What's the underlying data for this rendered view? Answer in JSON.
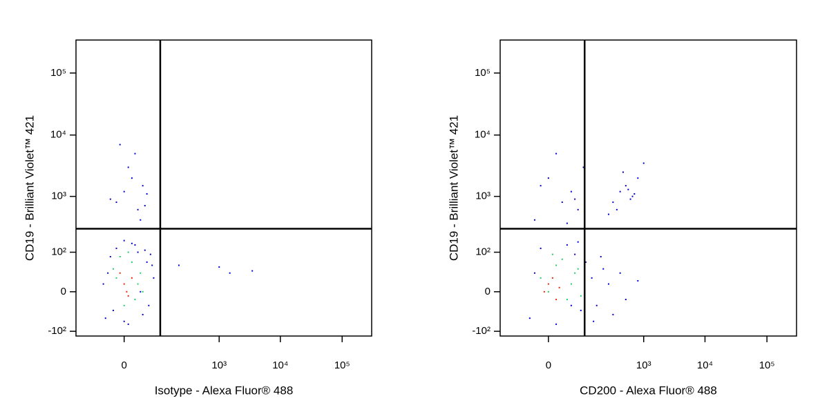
{
  "chart_data": [
    {
      "type": "scatter",
      "xlabel": "Isotype - Alexa Fluor® 488",
      "ylabel": "CD19 - Brilliant Violet™ 421",
      "xlim": [
        -150,
        300000
      ],
      "ylim": [
        -125,
        340000
      ],
      "xticks": [
        0,
        {
          "value": 1000,
          "label": "10³"
        },
        {
          "value": 10000,
          "label": "10⁴"
        },
        {
          "value": 100000,
          "label": "10⁵"
        }
      ],
      "yticks": [
        {
          "value": -100,
          "label": "-10²"
        },
        0,
        {
          "value": 100,
          "label": "10²"
        },
        {
          "value": 1000,
          "label": "10³"
        },
        {
          "value": 10000,
          "label": "10⁴"
        },
        {
          "value": 100000,
          "label": "10⁵"
        }
      ],
      "gates": {
        "x": 85,
        "y": 280
      },
      "series": [
        {
          "color": "#0000cc",
          "x": [
            -30,
            -20,
            -10,
            0,
            10,
            20,
            30,
            40,
            50,
            60,
            -25,
            -15,
            5,
            15,
            25,
            35,
            45,
            -35,
            0,
            55,
            -10,
            0,
            10,
            20,
            30,
            -20,
            5,
            15,
            25,
            40,
            -5,
            35,
            1000,
            1500,
            3500,
            200
          ],
          "values": [
            -50,
            80,
            120,
            -60,
            150,
            100,
            -40,
            60,
            90,
            20,
            30,
            -30,
            -70,
            140,
            0,
            110,
            -20,
            10,
            170,
            50,
            800,
            1200,
            2000,
            600,
            1500,
            900,
            3000,
            5000,
            400,
            1100,
            7000,
            700,
            45,
            30,
            35,
            50
          ]
        },
        {
          "color": "#22cc66",
          "x": [
            -15,
            0,
            10,
            20,
            -5,
            15,
            25,
            5,
            30,
            -10
          ],
          "values": [
            40,
            -20,
            60,
            10,
            80,
            -10,
            30,
            100,
            0,
            20
          ]
        },
        {
          "color": "#ee2200",
          "x": [
            0,
            5,
            10,
            -5,
            3
          ],
          "values": [
            10,
            -5,
            20,
            30,
            0
          ]
        }
      ]
    },
    {
      "type": "scatter",
      "xlabel": "CD200 - Alexa Fluor® 488",
      "ylabel": "CD19 - Brilliant Violet™ 421",
      "xlim": [
        -150,
        300000
      ],
      "ylim": [
        -125,
        340000
      ],
      "xticks": [
        0,
        {
          "value": 1000,
          "label": "10³"
        },
        {
          "value": 10000,
          "label": "10⁴"
        },
        {
          "value": 100000,
          "label": "10⁵"
        }
      ],
      "yticks": [
        {
          "value": -100,
          "label": "-10²"
        },
        0,
        {
          "value": 100,
          "label": "10²"
        },
        {
          "value": 1000,
          "label": "10³"
        },
        {
          "value": 10000,
          "label": "10⁴"
        },
        {
          "value": 100000,
          "label": "10⁵"
        }
      ],
      "gates": {
        "x": 85,
        "y": 280
      },
      "series": [
        {
          "color": "#0000cc",
          "x": [
            -30,
            -10,
            10,
            30,
            50,
            70,
            90,
            120,
            150,
            200,
            250,
            300,
            400,
            500,
            800,
            180,
            130,
            60,
            -20,
            40,
            -20,
            0,
            20,
            40,
            60,
            80,
            10,
            -10,
            50,
            30,
            300,
            400,
            500,
            600,
            700,
            800,
            350,
            450,
            550,
            1000,
            250,
            650
          ],
          "values": [
            -50,
            120,
            -70,
            140,
            90,
            -30,
            60,
            20,
            -20,
            40,
            10,
            -40,
            30,
            -10,
            15,
            80,
            -60,
            160,
            30,
            -20,
            400,
            2000,
            800,
            1200,
            600,
            3000,
            5000,
            1500,
            900,
            350,
            800,
            1200,
            1500,
            900,
            1100,
            2000,
            600,
            2500,
            1300,
            3500,
            500,
            1000
          ]
        },
        {
          "color": "#22cc66",
          "x": [
            -10,
            10,
            30,
            50,
            20,
            0,
            40,
            60,
            70,
            5
          ],
          "values": [
            20,
            50,
            -10,
            30,
            70,
            0,
            10,
            40,
            -5,
            90
          ]
        },
        {
          "color": "#ee2200",
          "x": [
            -5,
            0,
            10,
            5,
            15
          ],
          "values": [
            0,
            10,
            -10,
            20,
            5
          ]
        }
      ]
    }
  ]
}
